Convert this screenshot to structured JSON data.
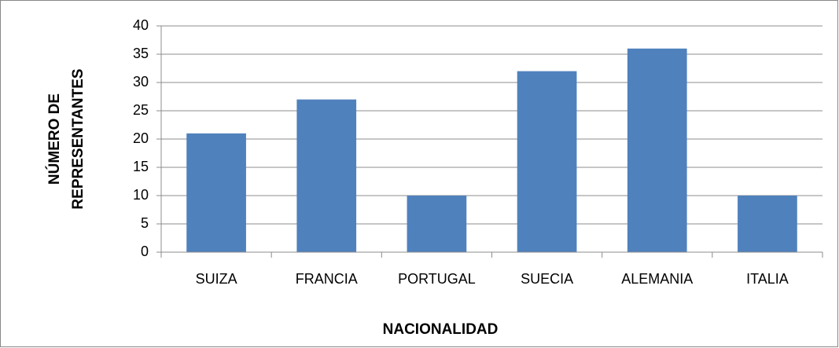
{
  "chart_data": {
    "type": "bar",
    "categories": [
      "SUIZA",
      "FRANCIA",
      "PORTUGAL",
      "SUECIA",
      "ALEMANIA",
      "ITALIA"
    ],
    "values": [
      21,
      27,
      10,
      32,
      36,
      10
    ],
    "color": "#4f81bd",
    "xlabel": "NACIONALIDAD",
    "ylabel": [
      "NÚMERO DE",
      "REPRESENTANTES"
    ],
    "ylim": [
      0,
      40
    ],
    "yticks": [
      0,
      5,
      10,
      15,
      20,
      25,
      30,
      35,
      40
    ],
    "grid": true
  }
}
